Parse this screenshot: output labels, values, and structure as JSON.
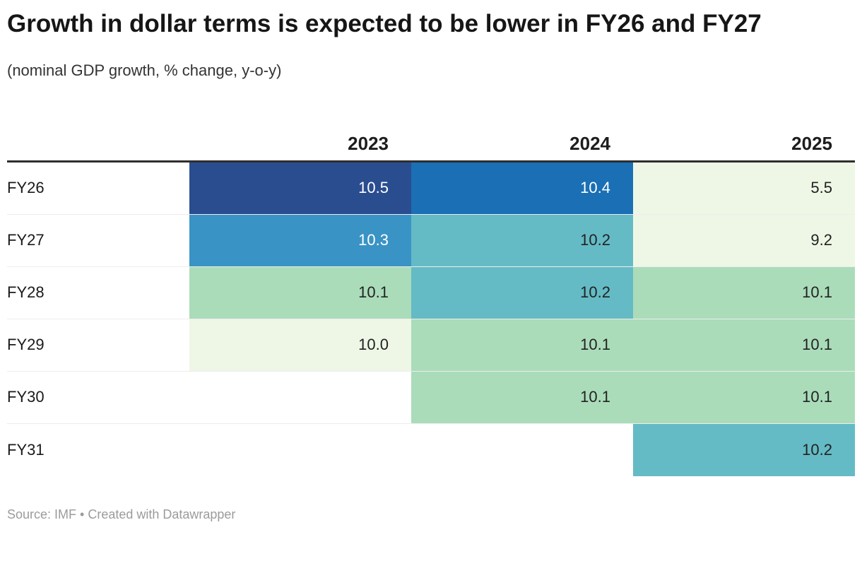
{
  "header": {
    "title": "Growth in dollar terms is expected to be lower in FY26 and FY27",
    "subtitle": "(nominal GDP growth, % change, y-o-y)"
  },
  "chart_data": {
    "type": "heatmap",
    "title": "Growth in dollar terms is expected to be lower in FY26 and FY27",
    "subtitle": "(nominal GDP growth, % change, y-o-y)",
    "columns": [
      "2023",
      "2024",
      "2025"
    ],
    "rows": [
      {
        "label": "FY26",
        "cells": [
          {
            "value": "10.5",
            "bg": "#2a4d90",
            "fg": "#ffffff"
          },
          {
            "value": "10.4",
            "bg": "#1a6fb5",
            "fg": "#ffffff"
          },
          {
            "value": "5.5",
            "bg": "#eef7e6",
            "fg": "#222222"
          }
        ]
      },
      {
        "label": "FY27",
        "cells": [
          {
            "value": "10.3",
            "bg": "#3a93c5",
            "fg": "#ffffff"
          },
          {
            "value": "10.2",
            "bg": "#64bbc5",
            "fg": "#222222"
          },
          {
            "value": "9.2",
            "bg": "#eef7e6",
            "fg": "#222222"
          }
        ]
      },
      {
        "label": "FY28",
        "cells": [
          {
            "value": "10.1",
            "bg": "#aadcba",
            "fg": "#222222"
          },
          {
            "value": "10.2",
            "bg": "#64bbc5",
            "fg": "#222222"
          },
          {
            "value": "10.1",
            "bg": "#aadcba",
            "fg": "#222222"
          }
        ]
      },
      {
        "label": "FY29",
        "cells": [
          {
            "value": "10.0",
            "bg": "#eef7e6",
            "fg": "#222222"
          },
          {
            "value": "10.1",
            "bg": "#aadcba",
            "fg": "#222222"
          },
          {
            "value": "10.1",
            "bg": "#aadcba",
            "fg": "#222222"
          }
        ]
      },
      {
        "label": "FY30",
        "cells": [
          {
            "value": "",
            "bg": null,
            "fg": null
          },
          {
            "value": "10.1",
            "bg": "#aadcba",
            "fg": "#222222"
          },
          {
            "value": "10.1",
            "bg": "#aadcba",
            "fg": "#222222"
          }
        ]
      },
      {
        "label": "FY31",
        "cells": [
          {
            "value": "",
            "bg": null,
            "fg": null
          },
          {
            "value": "",
            "bg": null,
            "fg": null
          },
          {
            "value": "10.2",
            "bg": "#64bbc5",
            "fg": "#222222"
          }
        ]
      }
    ],
    "layout": {
      "value_align": "right",
      "header_rule_color": "#2e2e2e",
      "grid": "row-separators-only",
      "legend": "none"
    }
  },
  "footer": {
    "text": "Source: IMF • Created with Datawrapper"
  }
}
